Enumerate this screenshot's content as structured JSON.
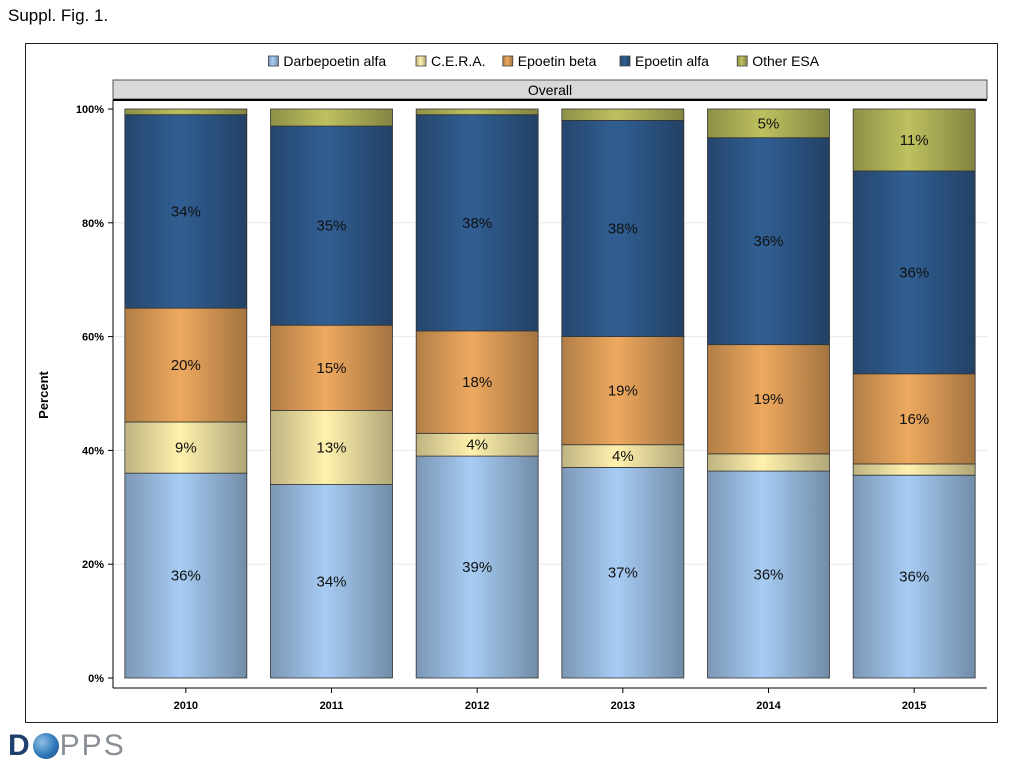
{
  "figure_label": "Suppl. Fig. 1.",
  "logo": {
    "first": "D",
    "rest": "PPS"
  },
  "colors": {
    "Darbepoetin alfa": "#9fc2e8",
    "C.E.R.A.": "#f5e6a6",
    "Epoetin beta": "#e3a15a",
    "Epoetin alfa": "#2f5a8c",
    "Other ESA": "#b5b85a"
  },
  "chart_data": {
    "type": "bar",
    "stacked": true,
    "panel_title": "Overall",
    "ylabel": "Percent",
    "xlabel": "",
    "ylim": [
      0,
      100
    ],
    "y_ticks": [
      "0%",
      "20%",
      "40%",
      "60%",
      "80%",
      "100%"
    ],
    "legend_position": "top",
    "categories": [
      "2010",
      "2011",
      "2012",
      "2013",
      "2014",
      "2015"
    ],
    "series": [
      {
        "name": "Darbepoetin alfa",
        "values": [
          36,
          34,
          39,
          37,
          36,
          36
        ],
        "labels": [
          "36%",
          "34%",
          "39%",
          "37%",
          "36%",
          "36%"
        ]
      },
      {
        "name": "C.E.R.A.",
        "values": [
          9,
          13,
          4,
          4,
          3,
          2
        ],
        "labels": [
          "9%",
          "13%",
          "4%",
          "4%",
          "",
          ""
        ]
      },
      {
        "name": "Epoetin beta",
        "values": [
          20,
          15,
          18,
          19,
          19,
          16
        ],
        "labels": [
          "20%",
          "15%",
          "18%",
          "19%",
          "19%",
          "16%"
        ]
      },
      {
        "name": "Epoetin alfa",
        "values": [
          34,
          35,
          38,
          38,
          36,
          36
        ],
        "labels": [
          "34%",
          "35%",
          "38%",
          "38%",
          "36%",
          "36%"
        ]
      },
      {
        "name": "Other ESA",
        "values": [
          1,
          3,
          1,
          2,
          5,
          11
        ],
        "labels": [
          "",
          "",
          "",
          "",
          "5%",
          "11%"
        ]
      }
    ]
  }
}
